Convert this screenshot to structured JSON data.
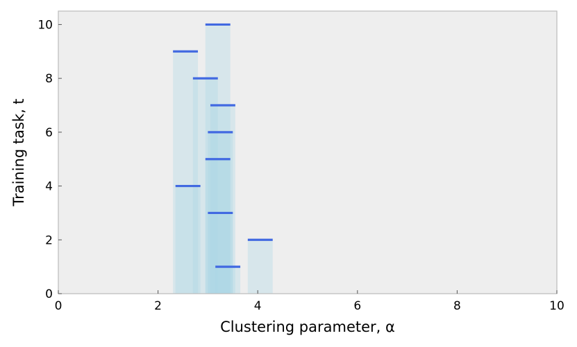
{
  "chart_data": {
    "type": "bar",
    "xlabel": "Clustering parameter, α",
    "ylabel": "Training task, t",
    "xlim": [
      0,
      10
    ],
    "ylim": [
      0,
      10.5
    ],
    "x_ticks": [
      0,
      2,
      4,
      6,
      8,
      10
    ],
    "y_ticks": [
      0,
      2,
      4,
      6,
      8,
      10
    ],
    "grid": false,
    "background_color": "#eeeeee",
    "band_color": "#add8e6",
    "marker_color": "#4169e1",
    "series": [
      {
        "points": [
          {
            "t": 1,
            "alpha": 3.4,
            "low": 3.15,
            "high": 3.65
          },
          {
            "t": 2,
            "alpha": 4.05,
            "low": 3.8,
            "high": 4.3
          },
          {
            "t": 3,
            "alpha": 3.25,
            "low": 3.0,
            "high": 3.5
          },
          {
            "t": 4,
            "alpha": 2.6,
            "low": 2.35,
            "high": 2.85
          },
          {
            "t": 5,
            "alpha": 3.2,
            "low": 2.95,
            "high": 3.45
          },
          {
            "t": 6,
            "alpha": 3.25,
            "low": 3.0,
            "high": 3.5
          },
          {
            "t": 7,
            "alpha": 3.3,
            "low": 3.05,
            "high": 3.55
          },
          {
            "t": 8,
            "alpha": 2.95,
            "low": 2.7,
            "high": 3.2
          },
          {
            "t": 9,
            "alpha": 2.55,
            "low": 2.3,
            "high": 2.8
          },
          {
            "t": 10,
            "alpha": 3.2,
            "low": 2.95,
            "high": 3.45
          }
        ]
      }
    ]
  }
}
